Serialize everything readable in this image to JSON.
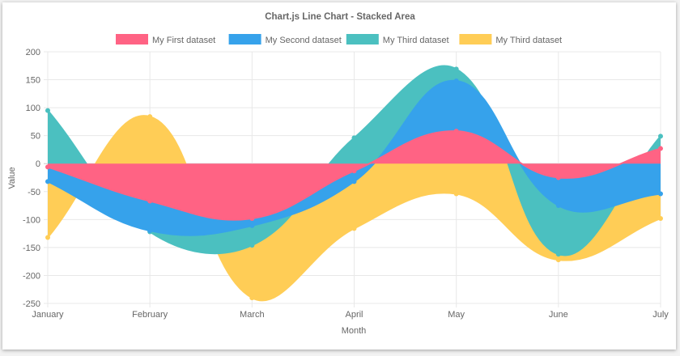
{
  "chart_data": {
    "type": "area",
    "stacked": true,
    "title": "Chart.js Line Chart - Stacked Area",
    "xlabel": "Month",
    "ylabel": "Value",
    "categories": [
      "January",
      "February",
      "March",
      "April",
      "May",
      "June",
      "July"
    ],
    "ylim": [
      -250,
      200
    ],
    "yticks": [
      200,
      150,
      100,
      50,
      0,
      -50,
      -100,
      -150,
      -200,
      -250
    ],
    "grid": true,
    "legend_position": "top",
    "series": [
      {
        "name": "My First dataset",
        "color": "#ff6384",
        "values": [
          -6,
          -67,
          -98,
          -13,
          58,
          -25,
          27
        ]
      },
      {
        "name": "My Second dataset",
        "color": "#36a2eb",
        "values": [
          -26,
          -53,
          -13,
          -19,
          90,
          -50,
          -54
        ]
      },
      {
        "name": "My Third dataset",
        "color": "#4bc0c0",
        "values": [
          95,
          -2,
          -35,
          46,
          21,
          -87,
          22
        ]
      },
      {
        "name": "My Third dataset",
        "color": "#ffcd56",
        "values": [
          -100,
          84,
          -94,
          -84,
          -54,
          -10,
          -44
        ]
      }
    ]
  }
}
